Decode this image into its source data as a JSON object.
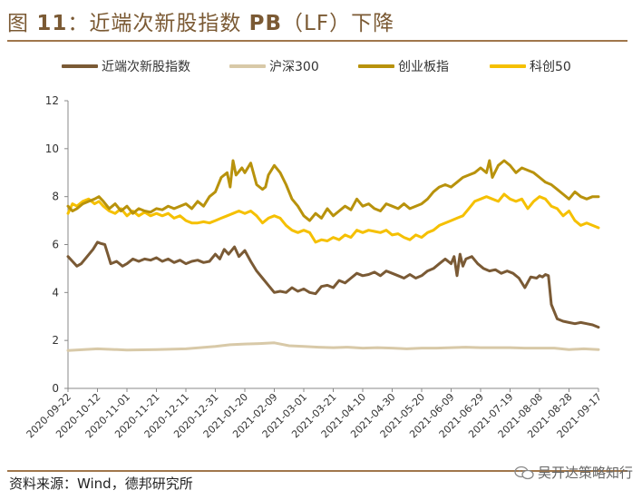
{
  "figure": {
    "title_prefix": "图",
    "title_number": "11",
    "title_sep": "：",
    "title_text": "近端次新股指数",
    "title_metric": "PB",
    "title_suffix": "（LF）下降"
  },
  "colors": {
    "accent": "#a0774c",
    "series": [
      "#7a5a35",
      "#d8c9a8",
      "#b8920c",
      "#f5c000"
    ]
  },
  "source": "资料来源：Wind，德邦研究所",
  "watermark": "吴开达策略知行",
  "chart_data": {
    "type": "line",
    "ylim": [
      0,
      12
    ],
    "yticks": [
      0,
      2,
      4,
      6,
      8,
      10,
      12
    ],
    "x_tick_labels": [
      "2020-09-22",
      "2020-10-12",
      "2020-11-01",
      "2020-11-21",
      "2020-12-11",
      "2020-12-31",
      "2021-01-20",
      "2021-02-09",
      "2021-03-01",
      "2021-03-21",
      "2021-04-10",
      "2021-04-30",
      "2021-05-20",
      "2021-06-09",
      "2021-06-29",
      "2021-07-19",
      "2021-08-08",
      "2021-08-28",
      "2021-09-17"
    ],
    "x_tick_positions": [
      0,
      20,
      40,
      60,
      80,
      100,
      120,
      140,
      160,
      180,
      200,
      220,
      240,
      260,
      280,
      300,
      320,
      340,
      360
    ],
    "x_range": [
      0,
      360
    ],
    "series": [
      {
        "name": "近端次新股指数",
        "color": "#7a5a35",
        "x": [
          0,
          3,
          6,
          9,
          13,
          17,
          20,
          22,
          25,
          27,
          29,
          33,
          37,
          40,
          44,
          48,
          52,
          56,
          60,
          64,
          68,
          72,
          76,
          80,
          84,
          88,
          92,
          96,
          100,
          103,
          106,
          109,
          113,
          116,
          120,
          124,
          128,
          132,
          136,
          140,
          144,
          148,
          152,
          156,
          160,
          164,
          168,
          172,
          176,
          180,
          184,
          188,
          192,
          196,
          200,
          204,
          208,
          212,
          216,
          220,
          224,
          228,
          232,
          236,
          240,
          244,
          248,
          252,
          256,
          260,
          262,
          264,
          266,
          268,
          270,
          274,
          278,
          282,
          286,
          290,
          294,
          298,
          302,
          306,
          310,
          314,
          318,
          320,
          322,
          324,
          326,
          328,
          332,
          336,
          340,
          344,
          348,
          352,
          356,
          360
        ],
        "y": [
          5.5,
          5.3,
          5.1,
          5.2,
          5.5,
          5.8,
          6.1,
          6.05,
          6.0,
          5.6,
          5.2,
          5.3,
          5.1,
          5.2,
          5.4,
          5.3,
          5.4,
          5.35,
          5.45,
          5.3,
          5.4,
          5.25,
          5.35,
          5.2,
          5.3,
          5.35,
          5.25,
          5.3,
          5.6,
          5.4,
          5.8,
          5.6,
          5.9,
          5.5,
          5.75,
          5.3,
          4.9,
          4.6,
          4.3,
          4.0,
          4.05,
          4.0,
          4.2,
          4.05,
          4.15,
          4.0,
          3.95,
          4.25,
          4.3,
          4.2,
          4.5,
          4.4,
          4.6,
          4.8,
          4.7,
          4.75,
          4.85,
          4.7,
          4.9,
          4.8,
          4.7,
          4.6,
          4.75,
          4.6,
          4.7,
          4.9,
          5.0,
          5.2,
          5.4,
          5.2,
          5.5,
          4.7,
          5.6,
          5.1,
          5.4,
          5.5,
          5.2,
          5.0,
          4.9,
          4.95,
          4.8,
          4.9,
          4.8,
          4.6,
          4.2,
          4.65,
          4.6,
          4.7,
          4.65,
          4.75,
          4.7,
          3.5,
          2.9,
          2.8,
          2.75,
          2.7,
          2.75,
          2.7,
          2.65,
          2.55
        ]
      },
      {
        "name": "沪深300",
        "color": "#d8c9a8",
        "x": [
          0,
          20,
          40,
          60,
          80,
          100,
          110,
          120,
          130,
          140,
          150,
          160,
          170,
          180,
          190,
          200,
          210,
          220,
          230,
          240,
          250,
          260,
          270,
          280,
          290,
          300,
          310,
          320,
          330,
          340,
          350,
          360
        ],
        "y": [
          1.58,
          1.65,
          1.6,
          1.62,
          1.65,
          1.75,
          1.82,
          1.85,
          1.87,
          1.9,
          1.78,
          1.75,
          1.72,
          1.7,
          1.72,
          1.68,
          1.7,
          1.68,
          1.65,
          1.68,
          1.68,
          1.7,
          1.72,
          1.7,
          1.7,
          1.7,
          1.68,
          1.68,
          1.68,
          1.62,
          1.65,
          1.62
        ]
      },
      {
        "name": "创业板指",
        "color": "#b8920c",
        "x": [
          0,
          3,
          6,
          10,
          14,
          18,
          21,
          24,
          28,
          32,
          36,
          40,
          44,
          48,
          52,
          56,
          60,
          64,
          68,
          72,
          76,
          80,
          84,
          88,
          92,
          96,
          100,
          104,
          108,
          110,
          112,
          114,
          118,
          120,
          124,
          128,
          132,
          134,
          136,
          140,
          144,
          148,
          152,
          156,
          160,
          164,
          168,
          172,
          176,
          180,
          184,
          188,
          192,
          196,
          200,
          204,
          208,
          212,
          216,
          220,
          224,
          228,
          232,
          236,
          240,
          244,
          248,
          252,
          256,
          260,
          264,
          268,
          272,
          276,
          280,
          284,
          286,
          288,
          292,
          296,
          300,
          304,
          308,
          312,
          316,
          320,
          324,
          328,
          332,
          336,
          340,
          344,
          348,
          352,
          356,
          360
        ],
        "y": [
          7.6,
          7.4,
          7.5,
          7.7,
          7.8,
          7.9,
          8.0,
          7.8,
          7.5,
          7.7,
          7.4,
          7.6,
          7.3,
          7.5,
          7.4,
          7.35,
          7.5,
          7.45,
          7.6,
          7.5,
          7.6,
          7.7,
          7.5,
          7.8,
          7.6,
          8.0,
          8.2,
          8.8,
          9.0,
          8.4,
          9.5,
          8.9,
          9.2,
          9.0,
          9.4,
          8.5,
          8.3,
          8.4,
          8.9,
          9.3,
          9.0,
          8.5,
          7.9,
          7.6,
          7.2,
          7.0,
          7.3,
          7.1,
          7.5,
          7.2,
          7.4,
          7.6,
          7.45,
          7.9,
          7.6,
          7.7,
          7.5,
          7.4,
          7.7,
          7.6,
          7.5,
          7.7,
          7.5,
          7.6,
          7.7,
          7.9,
          8.2,
          8.4,
          8.5,
          8.4,
          8.6,
          8.8,
          8.9,
          9.0,
          9.2,
          9.0,
          9.5,
          8.8,
          9.3,
          9.5,
          9.3,
          9.0,
          9.2,
          9.1,
          9.0,
          8.8,
          8.6,
          8.5,
          8.3,
          8.1,
          7.9,
          8.2,
          8.0,
          7.9,
          8.0,
          8.0
        ]
      },
      {
        "name": "科创50",
        "color": "#f5c000",
        "x": [
          0,
          3,
          6,
          10,
          14,
          18,
          21,
          24,
          28,
          32,
          36,
          40,
          44,
          48,
          52,
          56,
          60,
          64,
          68,
          72,
          76,
          80,
          84,
          88,
          92,
          96,
          100,
          104,
          108,
          112,
          116,
          120,
          124,
          128,
          132,
          136,
          140,
          144,
          148,
          152,
          156,
          160,
          164,
          168,
          172,
          176,
          180,
          184,
          188,
          192,
          196,
          200,
          204,
          208,
          212,
          216,
          220,
          224,
          228,
          232,
          236,
          240,
          244,
          248,
          252,
          256,
          260,
          264,
          268,
          272,
          276,
          280,
          284,
          288,
          292,
          296,
          300,
          304,
          308,
          312,
          316,
          320,
          324,
          328,
          332,
          336,
          340,
          344,
          348,
          352,
          356,
          360
        ],
        "y": [
          7.3,
          7.7,
          7.6,
          7.8,
          7.9,
          7.7,
          7.8,
          7.6,
          7.4,
          7.3,
          7.5,
          7.2,
          7.4,
          7.2,
          7.35,
          7.2,
          7.3,
          7.2,
          7.3,
          7.1,
          7.2,
          7.0,
          6.9,
          6.9,
          6.95,
          6.9,
          7.0,
          7.1,
          7.2,
          7.3,
          7.4,
          7.3,
          7.4,
          7.2,
          6.9,
          7.1,
          7.2,
          7.1,
          6.8,
          6.6,
          6.5,
          6.6,
          6.5,
          6.1,
          6.2,
          6.15,
          6.3,
          6.2,
          6.4,
          6.3,
          6.6,
          6.5,
          6.6,
          6.55,
          6.5,
          6.6,
          6.4,
          6.45,
          6.3,
          6.2,
          6.4,
          6.3,
          6.5,
          6.6,
          6.8,
          6.9,
          7.0,
          7.1,
          7.2,
          7.5,
          7.8,
          7.9,
          8.0,
          7.9,
          7.8,
          8.1,
          7.9,
          7.8,
          7.9,
          7.5,
          7.8,
          8.0,
          7.9,
          7.6,
          7.5,
          7.2,
          7.4,
          7.0,
          6.8,
          6.9,
          6.8,
          6.7
        ]
      }
    ]
  }
}
